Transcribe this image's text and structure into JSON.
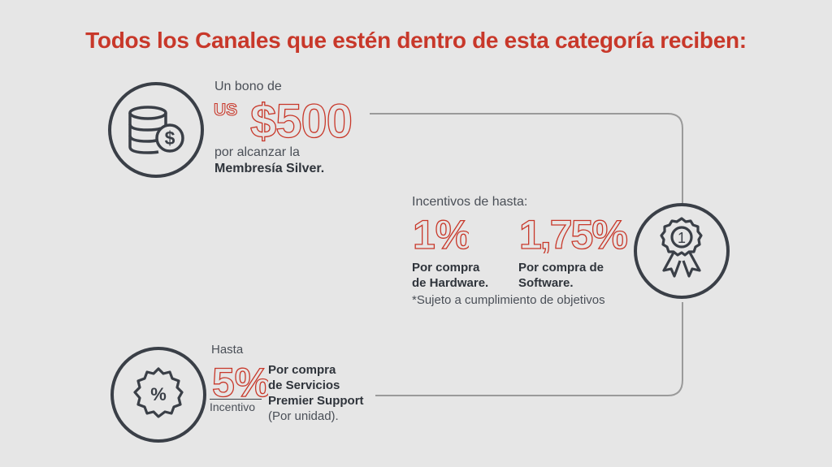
{
  "title": "Todos los Canales que estén dentro de esta categoría reciben:",
  "colors": {
    "accent": "#c8382a",
    "text": "#3a3f47",
    "background": "#e6e6e6",
    "line": "#9a9a9a"
  },
  "bonus": {
    "intro": "Un bono de",
    "currency": "US",
    "amount": "$500",
    "line1": "por alcanzar la",
    "line2": "Membresía Silver.",
    "icon": "database-coin-icon"
  },
  "incentives": {
    "intro": "Incentivos de hasta:",
    "hardware_pct": "1%",
    "hardware_label_1": "Por compra",
    "hardware_label_2": "de Hardware.",
    "software_pct": "1,75%",
    "software_label_1": "Por compra de",
    "software_label_2": "Software.",
    "note": "*Sujeto a cumplimiento de objetivos",
    "icon": "award-ribbon-icon",
    "award_number": "1"
  },
  "support": {
    "intro": "Hasta",
    "pct": "5%",
    "under": "Incentivo",
    "line1": "Por compra",
    "line2": "de Servicios",
    "line3": "Premier Support",
    "line4": "(Por unidad).",
    "icon": "percent-badge-icon"
  }
}
